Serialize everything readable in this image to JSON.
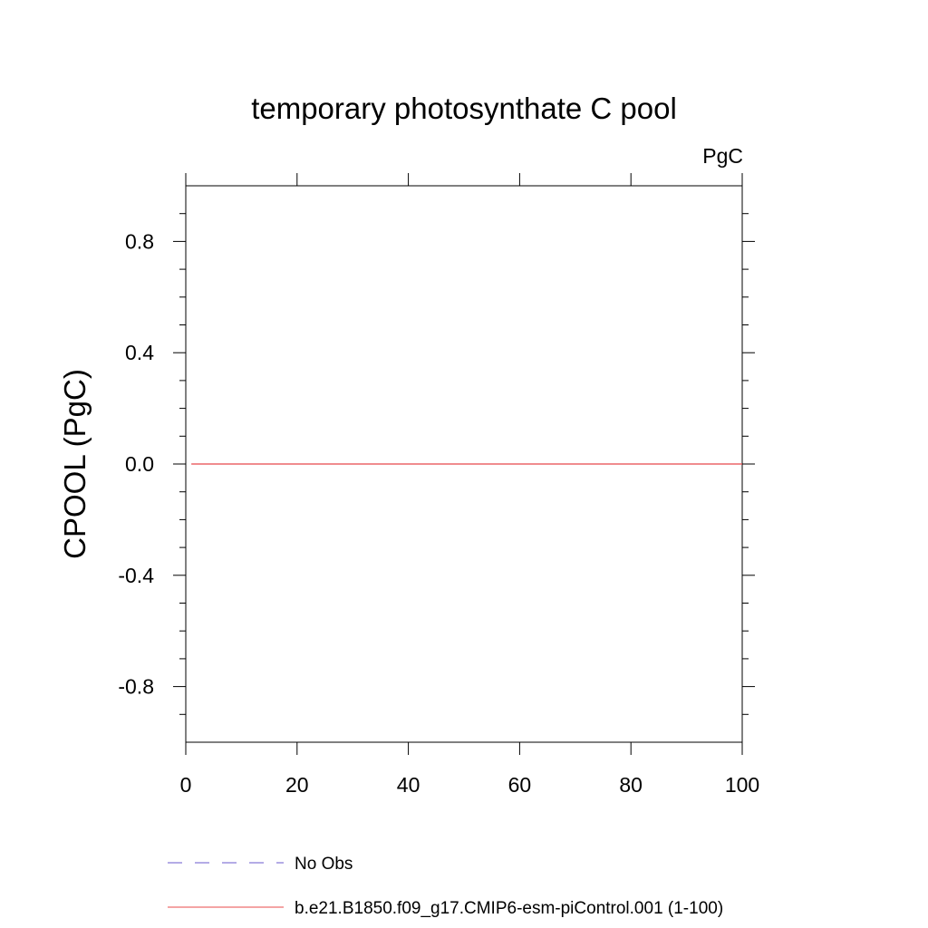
{
  "chart_data": {
    "type": "line",
    "title": "temporary photosynthate C pool",
    "units_label": "PgC",
    "xlabel": "",
    "ylabel": "CPOOL  (PgC)",
    "xlim": [
      0,
      100
    ],
    "ylim": [
      -1,
      1
    ],
    "x_ticks": [
      0,
      20,
      40,
      60,
      80,
      100
    ],
    "x_tick_labels": [
      "0",
      "20",
      "40",
      "60",
      "80",
      "100"
    ],
    "y_ticks": [
      0.8,
      0.4,
      0.0,
      -0.4,
      -0.8
    ],
    "y_tick_labels": [
      "0.8",
      "0.4",
      "0.0",
      "-0.4",
      "-0.8"
    ],
    "grid": false,
    "legend_position": "bottom",
    "series": [
      {
        "name": "b.e21.B1850.f09_g17.CMIP6-esm-piControl.001 (1-100)",
        "color": "#e8484a",
        "style": "solid",
        "x": [
          1,
          100
        ],
        "y": [
          0.0,
          0.0
        ]
      }
    ],
    "legend": [
      {
        "label": "No Obs",
        "color": "#6a5acd",
        "style": "dashed"
      },
      {
        "label": "b.e21.B1850.f09_g17.CMIP6-esm-piControl.001 (1-100)",
        "color": "#e8484a",
        "style": "solid"
      }
    ]
  }
}
